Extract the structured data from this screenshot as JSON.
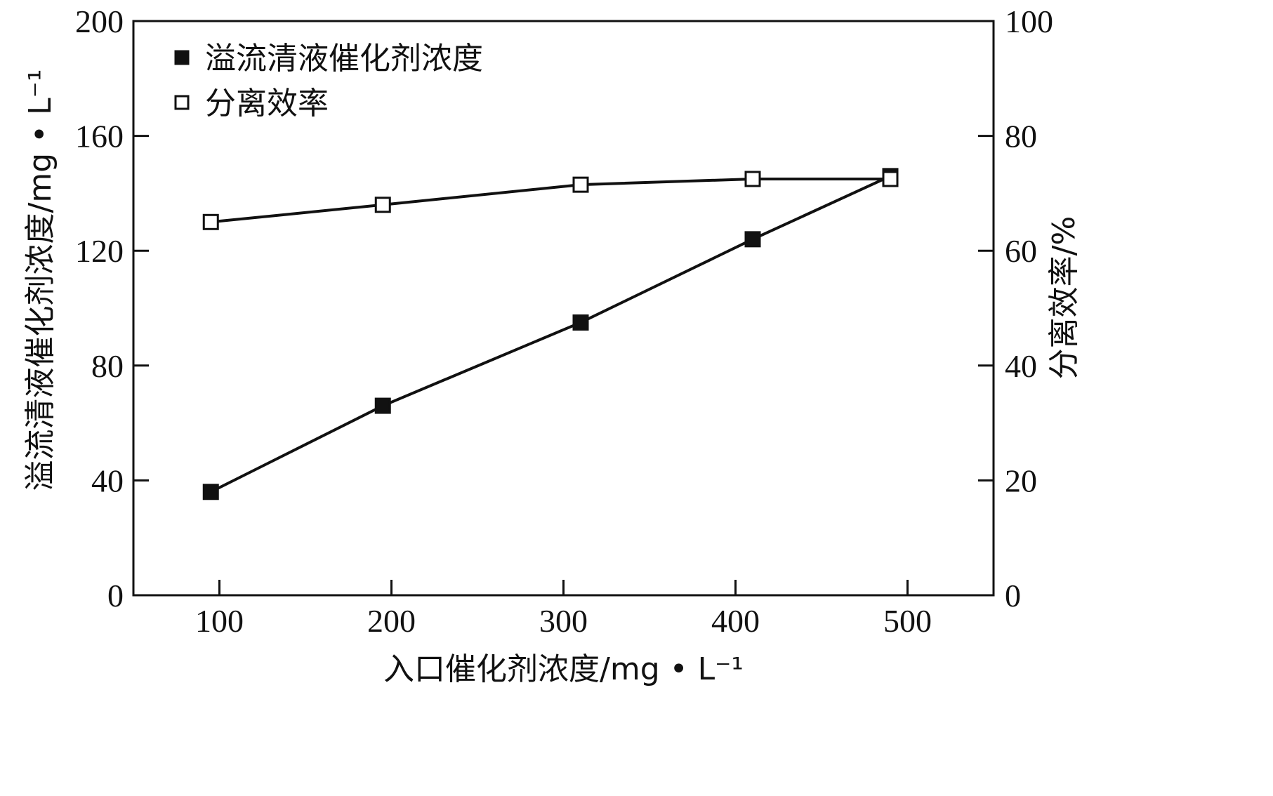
{
  "chart_data": {
    "type": "line",
    "xlabel": "入口催化剂浓度/mg • L⁻¹",
    "ylabel_left": "溢流清液催化剂浓度/mg • L⁻¹",
    "ylabel_right": "分离效率/%",
    "xlim": [
      50,
      550
    ],
    "ylim_left": [
      0,
      200
    ],
    "ylim_right": [
      0,
      100
    ],
    "x_ticks": [
      100,
      200,
      300,
      400,
      500
    ],
    "y_ticks_left": [
      0,
      40,
      80,
      120,
      160,
      200
    ],
    "y_ticks_right": [
      0,
      20,
      40,
      60,
      80,
      100
    ],
    "grid": false,
    "legend_position": "top-left",
    "series": [
      {
        "name": "溢流清液催化剂浓度",
        "axis": "left",
        "marker": "filled-square",
        "x": [
          95,
          195,
          310,
          410,
          490
        ],
        "y": [
          36,
          66,
          95,
          124,
          146
        ]
      },
      {
        "name": "分离效率",
        "axis": "right",
        "marker": "open-square",
        "x": [
          95,
          195,
          310,
          410,
          490
        ],
        "y": [
          65,
          68,
          71.5,
          72.5,
          72.5
        ]
      }
    ]
  }
}
